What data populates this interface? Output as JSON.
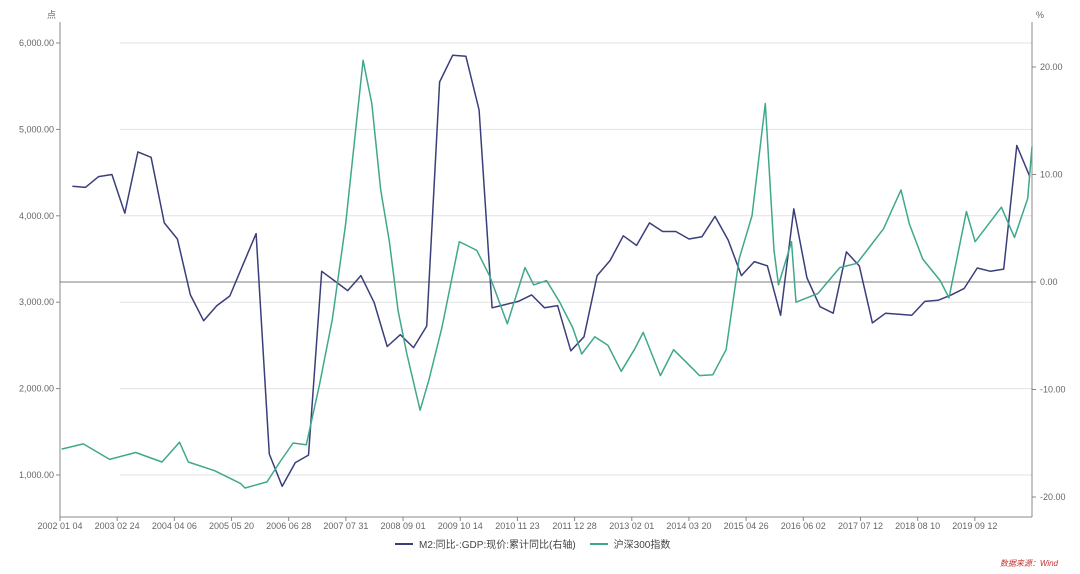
{
  "chart_data": {
    "type": "line",
    "left_unit": "点",
    "right_unit": "%",
    "left_ticks": [
      "1,000.00",
      "2,000.00",
      "3,000.00",
      "4,000.00",
      "5,000.00",
      "6,000.00"
    ],
    "right_ticks": [
      "-20.00",
      "-10.00",
      "0.00",
      "10.00",
      "20.00"
    ],
    "x_ticks": [
      "2002 01 04",
      "2003 02 24",
      "2004 04 06",
      "2005 05 20",
      "2006 06 28",
      "2007 07 31",
      "2008 09 01",
      "2009 10 14",
      "2010 11 23",
      "2011 12 28",
      "2013 02 01",
      "2014 03 20",
      "2015 04 26",
      "2016 06 02",
      "2017 07 12",
      "2018 08 10",
      "2019 09 12"
    ],
    "colors": {
      "m2_gdp": "#3a3f7a",
      "hs300": "#3fa88c",
      "axis": "#888888"
    },
    "series": [
      {
        "name": "M2:同比-:GDP:现价:累计同比(右轴)",
        "axis": "right",
        "x": [
          "2002-03-31",
          "2002-06-30",
          "2002-09-30",
          "2002-12-31",
          "2003-03-31",
          "2003-06-30",
          "2003-09-30",
          "2003-12-31",
          "2004-03-31",
          "2004-06-30",
          "2004-09-30",
          "2004-12-31",
          "2005-03-31",
          "2005-06-30",
          "2005-09-30",
          "2005-12-31",
          "2006-03-31",
          "2006-06-30",
          "2006-09-30",
          "2006-12-31",
          "2007-03-31",
          "2007-06-30",
          "2007-09-30",
          "2007-12-31",
          "2008-03-31",
          "2008-06-30",
          "2008-09-30",
          "2008-12-31",
          "2009-03-31",
          "2009-06-30",
          "2009-09-30",
          "2009-12-31",
          "2010-03-31",
          "2010-06-30",
          "2010-09-30",
          "2010-12-31",
          "2011-03-31",
          "2011-06-30",
          "2011-09-30",
          "2011-12-31",
          "2012-03-31",
          "2012-06-30",
          "2012-09-30",
          "2012-12-31",
          "2013-03-31",
          "2013-06-30",
          "2013-09-30",
          "2013-12-31",
          "2014-03-31",
          "2014-06-30",
          "2014-09-30",
          "2014-12-31",
          "2015-03-31",
          "2015-06-30",
          "2015-09-30",
          "2015-12-31",
          "2016-03-31",
          "2016-06-30",
          "2016-09-30",
          "2016-12-31",
          "2017-03-31",
          "2017-06-30",
          "2017-09-30",
          "2017-12-31",
          "2018-03-31",
          "2018-06-30",
          "2018-09-30",
          "2018-12-31",
          "2019-03-31",
          "2019-06-30",
          "2019-09-30",
          "2019-12-31",
          "2020-03-31",
          "2020-06-30"
        ],
        "values": [
          8.9,
          8.8,
          9.8,
          10.0,
          6.4,
          12.1,
          11.6,
          5.5,
          4.0,
          -1.2,
          -3.6,
          -2.2,
          -1.3,
          1.6,
          4.5,
          -16.0,
          -19.0,
          -16.8,
          -16.1,
          1.0,
          0.1,
          -0.8,
          0.6,
          -1.9,
          -6.0,
          -4.9,
          -6.1,
          -4.1,
          18.6,
          21.1,
          21.0,
          16.0,
          -2.4,
          -2.1,
          -1.8,
          -1.2,
          -2.4,
          -2.2,
          -6.4,
          -5.1,
          0.6,
          2.0,
          4.3,
          3.4,
          5.5,
          4.7,
          4.7,
          4.0,
          4.2,
          6.1,
          3.9,
          0.6,
          1.9,
          1.5,
          -3.1,
          6.8,
          0.4,
          -2.3,
          -2.9,
          2.8,
          1.5,
          -3.8,
          -2.9,
          -3.0,
          -3.1,
          -1.8,
          -1.7,
          -1.2,
          -0.6,
          1.3,
          1.0,
          1.2,
          12.7,
          9.8
        ]
      },
      {
        "name": "沪深300指数",
        "axis": "left",
        "x": [
          "2002-01",
          "2002-06",
          "2002-12",
          "2003-06",
          "2003-12",
          "2004-04",
          "2004-06",
          "2004-12",
          "2005-06",
          "2005-07",
          "2005-12",
          "2006-03",
          "2006-06",
          "2006-09",
          "2006-12",
          "2007-03",
          "2007-06",
          "2007-10",
          "2007-12",
          "2008-02",
          "2008-04",
          "2008-06",
          "2008-08",
          "2008-11",
          "2009-01",
          "2009-04",
          "2009-08",
          "2009-10",
          "2009-12",
          "2010-03",
          "2010-07",
          "2010-11",
          "2011-01",
          "2011-04",
          "2011-07",
          "2011-10",
          "2011-12",
          "2012-03",
          "2012-06",
          "2012-09",
          "2012-12",
          "2013-02",
          "2013-06",
          "2013-09",
          "2013-12",
          "2014-03",
          "2014-06",
          "2014-09",
          "2014-12",
          "2015-03",
          "2015-06",
          "2015-08",
          "2015-09",
          "2015-12",
          "2016-01",
          "2016-06",
          "2016-11",
          "2017-03",
          "2017-06",
          "2017-09",
          "2018-01",
          "2018-03",
          "2018-06",
          "2018-10",
          "2018-12",
          "2019-04",
          "2019-06",
          "2019-09",
          "2019-12",
          "2020-03",
          "2020-06",
          "2020-07"
        ],
        "values": [
          1300,
          1360,
          1180,
          1260,
          1150,
          1380,
          1150,
          1050,
          900,
          850,
          920,
          1150,
          1370,
          1350,
          2040,
          2800,
          3900,
          5800,
          5300,
          4300,
          3700,
          2900,
          2400,
          1750,
          2100,
          2700,
          3700,
          3650,
          3600,
          3300,
          2750,
          3400,
          3200,
          3250,
          3000,
          2700,
          2400,
          2600,
          2500,
          2200,
          2450,
          2650,
          2150,
          2450,
          2300,
          2150,
          2160,
          2450,
          3500,
          4000,
          5300,
          3600,
          3200,
          3700,
          3000,
          3100,
          3400,
          3450,
          3650,
          3850,
          4300,
          3900,
          3500,
          3250,
          3050,
          4050,
          3700,
          3900,
          4100,
          3750,
          4200,
          4800
        ]
      }
    ],
    "source": "数据来源：Wind"
  }
}
